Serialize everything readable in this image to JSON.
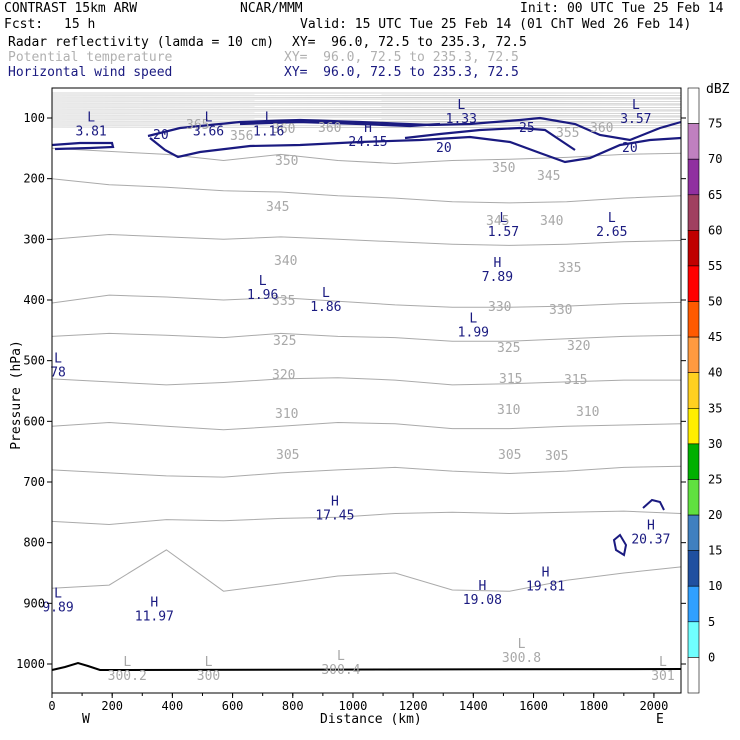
{
  "header": {
    "model": "CONTRAST 15km ARW",
    "center": "NCAR/MMM",
    "init": "Init: 00 UTC Tue 25 Feb 14",
    "fcst_label": "Fcst:",
    "fcst_value": "15 h",
    "valid": "Valid: 15 UTC Tue 25 Feb 14 (01 ChT Wed 26 Feb 14)"
  },
  "fields": [
    {
      "name": "Radar reflectivity (lamda = 10 cm)",
      "xy": "XY=  96.0, 72.5 to 235.3, 72.5",
      "color": "#000000"
    },
    {
      "name": "Potential temperature",
      "xy": "XY=  96.0, 72.5 to 235.3, 72.5",
      "color": "#b0b0b0"
    },
    {
      "name": "Horizontal wind speed",
      "xy": "XY=  96.0, 72.5 to 235.3, 72.5",
      "color": "#1a1a80"
    }
  ],
  "chart_data": {
    "type": "cross-section contour",
    "xlabel": "Distance (km)",
    "ylabel": "Pressure (hPa)",
    "xlim": [
      0,
      2090
    ],
    "ylim_hpa": [
      55,
      1050
    ],
    "x_ticks": [
      0,
      200,
      400,
      600,
      800,
      1000,
      1200,
      1400,
      1600,
      1800,
      2000
    ],
    "y_ticks": [
      100,
      200,
      300,
      400,
      500,
      600,
      700,
      800,
      900,
      1000
    ],
    "end_labels": {
      "left": "W",
      "right": "E"
    },
    "colorbar": {
      "unit": "dBZ",
      "levels": [
        "75",
        "70",
        "65",
        "60",
        "55",
        "50",
        "45",
        "40",
        "35",
        "30",
        "25",
        "20",
        "15",
        "10",
        "5",
        "0"
      ],
      "colors": [
        "#ffffff",
        "#c080c0",
        "#9030a0",
        "#a04060",
        "#c00000",
        "#ff0000",
        "#ff5a00",
        "#ff9a40",
        "#ffd020",
        "#ffee00",
        "#00b000",
        "#60e040",
        "#4080c0",
        "#2050a0",
        "#30a0ff",
        "#70ffff",
        "#ffffff"
      ]
    },
    "theta_isentropes_K": [
      {
        "label": "350",
        "p": [
          150,
          155,
          160,
          170,
          160,
          170,
          175,
          170,
          168,
          165,
          160,
          158
        ]
      },
      {
        "label": "345",
        "p": [
          200,
          210,
          214,
          220,
          222,
          228,
          232,
          238,
          240,
          238,
          232,
          228
        ]
      },
      {
        "label": "340",
        "p": [
          300,
          292,
          296,
          300,
          296,
          300,
          304,
          308,
          310,
          308,
          304,
          302
        ]
      },
      {
        "label": "335",
        "p": [
          405,
          392,
          395,
          400,
          396,
          402,
          408,
          412,
          412,
          410,
          406,
          404
        ]
      },
      {
        "label": "330",
        "p": [
          460,
          455,
          458,
          462,
          455,
          460,
          462,
          468,
          468,
          464,
          460,
          458
        ]
      },
      {
        "label": "325",
        "p": [
          530,
          535,
          540,
          536,
          530,
          528,
          532,
          540,
          538,
          535,
          532,
          532
        ]
      },
      {
        "label": "320",
        "p": [
          608,
          602,
          608,
          614,
          608,
          602,
          604,
          612,
          612,
          608,
          606,
          604
        ]
      },
      {
        "label": "315",
        "p": [
          680,
          685,
          690,
          692,
          685,
          680,
          676,
          682,
          686,
          682,
          676,
          674
        ]
      },
      {
        "label": "310",
        "p": [
          765,
          770,
          762,
          764,
          760,
          758,
          752,
          750,
          752,
          750,
          748,
          752
        ]
      },
      {
        "label": "305",
        "p": [
          875,
          870,
          812,
          880,
          868,
          855,
          850,
          878,
          880,
          862,
          850,
          840
        ]
      }
    ],
    "theta_labels": [
      "365",
      "356",
      "360",
      "360",
      "355",
      "360",
      "350",
      "350",
      "345",
      "345",
      "345",
      "340",
      "340",
      "335",
      "335",
      "330",
      "330",
      "325",
      "325",
      "320",
      "320",
      "315",
      "315",
      "310",
      "310",
      "310",
      "305",
      "305",
      "305"
    ],
    "wind_speed_labels_m_s": [
      "20",
      "25",
      "20",
      "20"
    ],
    "extrema": [
      {
        "type": "L",
        "value": "3.81",
        "x_km": 130,
        "p_hpa": 112,
        "color": "navy"
      },
      {
        "type": "L",
        "value": "3.66",
        "x_km": 520,
        "p_hpa": 112,
        "color": "navy"
      },
      {
        "type": "L",
        "value": "1.16",
        "x_km": 720,
        "p_hpa": 112,
        "color": "navy"
      },
      {
        "type": "H",
        "value": "24.15",
        "x_km": 1050,
        "p_hpa": 130,
        "color": "navy"
      },
      {
        "type": "L",
        "value": "1.33",
        "x_km": 1360,
        "p_hpa": 92,
        "color": "navy"
      },
      {
        "type": "L",
        "value": "3.57",
        "x_km": 1940,
        "p_hpa": 92,
        "color": "navy"
      },
      {
        "type": "L",
        "value": "1.57",
        "x_km": 1500,
        "p_hpa": 278,
        "color": "navy"
      },
      {
        "type": "L",
        "value": "2.65",
        "x_km": 1860,
        "p_hpa": 278,
        "color": "navy"
      },
      {
        "type": "H",
        "value": "7.89",
        "x_km": 1480,
        "p_hpa": 352,
        "color": "navy"
      },
      {
        "type": "L",
        "value": "1.96",
        "x_km": 700,
        "p_hpa": 382,
        "color": "navy"
      },
      {
        "type": "L",
        "value": "1.86",
        "x_km": 910,
        "p_hpa": 402,
        "color": "navy"
      },
      {
        "type": "L",
        "value": "1.99",
        "x_km": 1400,
        "p_hpa": 444,
        "color": "navy"
      },
      {
        "type": "L",
        "value": "78",
        "x_km": 20,
        "p_hpa": 510,
        "color": "navy"
      },
      {
        "type": "H",
        "value": "17.45",
        "x_km": 940,
        "p_hpa": 745,
        "color": "navy"
      },
      {
        "type": "H",
        "value": "20.37",
        "x_km": 1990,
        "p_hpa": 785,
        "color": "navy"
      },
      {
        "type": "H",
        "value": "19.81",
        "x_km": 1640,
        "p_hpa": 862,
        "color": "navy"
      },
      {
        "type": "H",
        "value": "19.08",
        "x_km": 1430,
        "p_hpa": 885,
        "color": "navy"
      },
      {
        "type": "H",
        "value": "11.97",
        "x_km": 340,
        "p_hpa": 912,
        "color": "navy"
      },
      {
        "type": "L",
        "value": "9.89",
        "x_km": 20,
        "p_hpa": 897,
        "color": "navy"
      },
      {
        "type": "L",
        "value": "300.8",
        "x_km": 1560,
        "p_hpa": 980,
        "color": "grey"
      },
      {
        "type": "L",
        "value": "300.4",
        "x_km": 960,
        "p_hpa": 1000,
        "color": "grey"
      },
      {
        "type": "L",
        "value": "300.2",
        "x_km": 250,
        "p_hpa": 1010,
        "color": "grey"
      },
      {
        "type": "L",
        "value": "300",
        "x_km": 520,
        "p_hpa": 1010,
        "color": "grey"
      },
      {
        "type": "L",
        "value": "301",
        "x_km": 2030,
        "p_hpa": 1010,
        "color": "grey"
      }
    ]
  }
}
